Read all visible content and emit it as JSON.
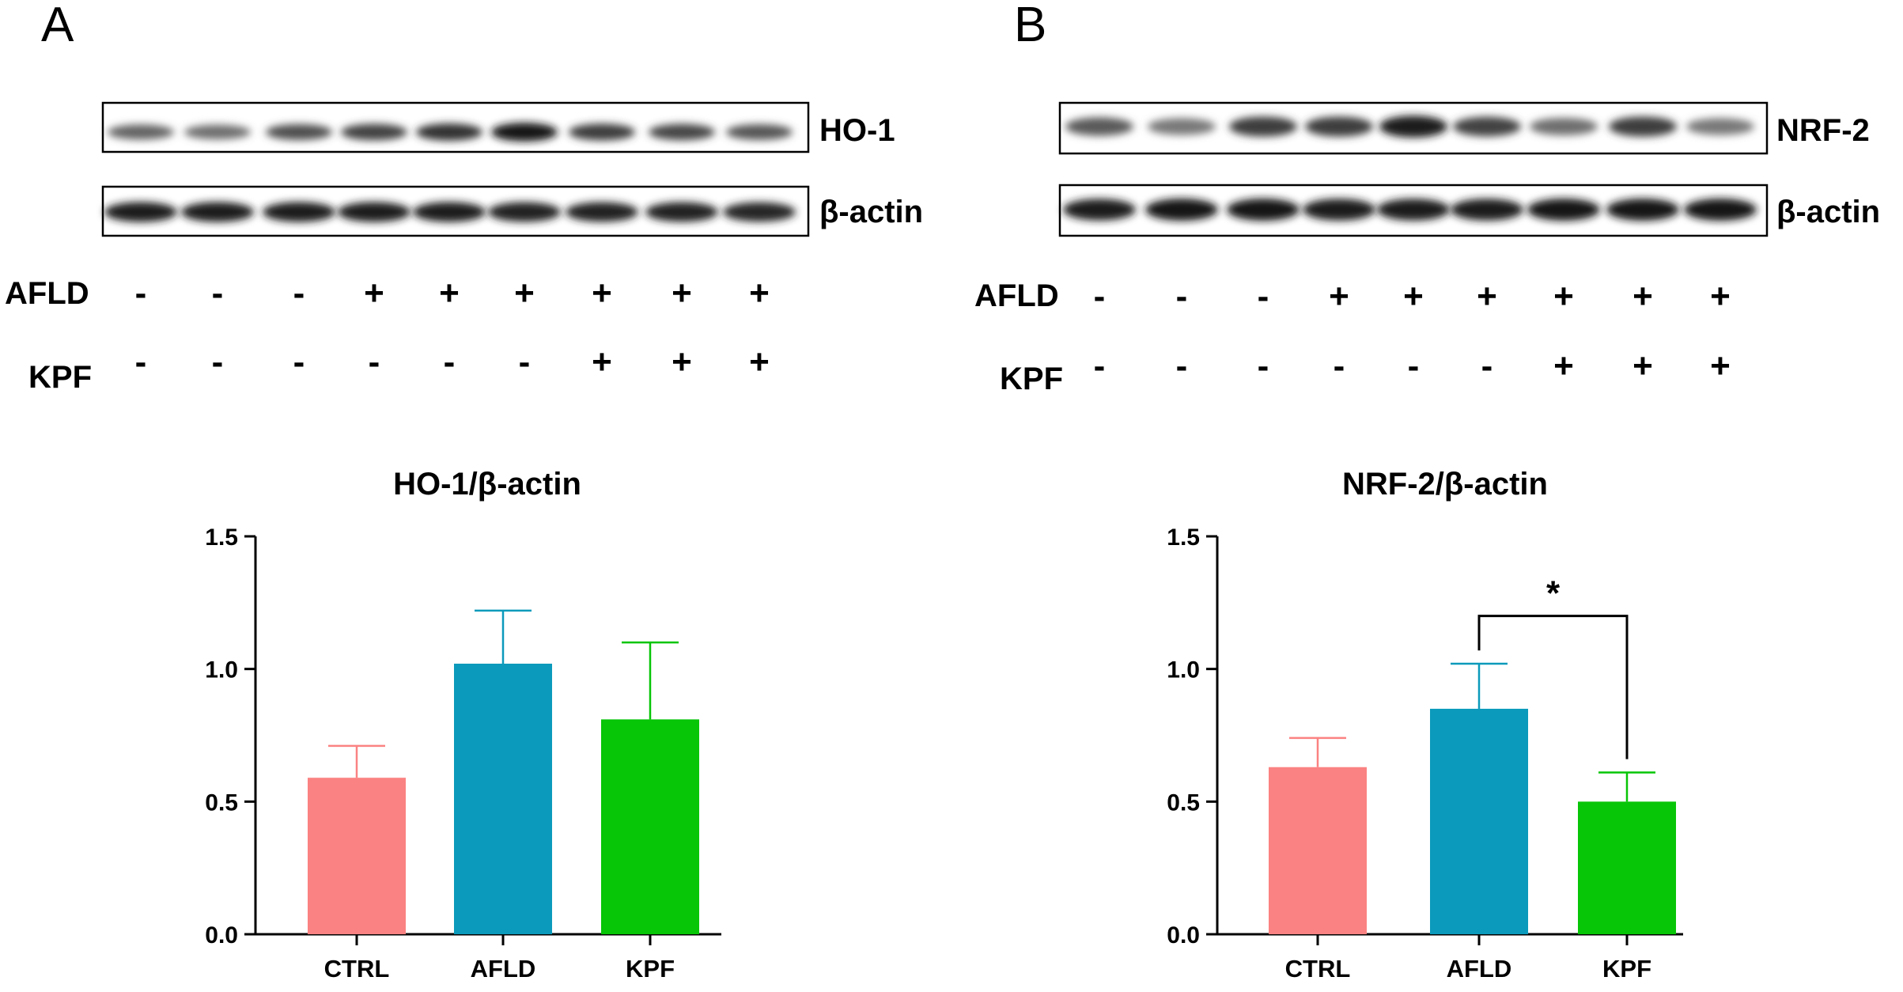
{
  "panels": [
    {
      "letter": "A",
      "blot": {
        "target_label": "HO-1",
        "control_label": "β-actin",
        "target_band_intensity": [
          0.55,
          0.5,
          0.65,
          0.72,
          0.8,
          0.95,
          0.75,
          0.7,
          0.62
        ],
        "control_band_intensity": [
          0.9,
          0.9,
          0.9,
          0.9,
          0.9,
          0.88,
          0.88,
          0.88,
          0.86
        ]
      },
      "treatments": [
        {
          "label": "AFLD",
          "signs": [
            "-",
            "-",
            "-",
            "+",
            "+",
            "+",
            "+",
            "+",
            "+"
          ]
        },
        {
          "label": "KPF",
          "signs": [
            "-",
            "-",
            "-",
            "-",
            "-",
            "-",
            "+",
            "+",
            "+"
          ]
        }
      ]
    },
    {
      "letter": "B",
      "blot": {
        "target_label": "NRF-2",
        "control_label": "β-actin",
        "target_band_intensity": [
          0.6,
          0.45,
          0.75,
          0.75,
          0.92,
          0.72,
          0.5,
          0.75,
          0.45
        ],
        "control_band_intensity": [
          0.9,
          0.95,
          0.95,
          0.92,
          0.92,
          0.92,
          0.95,
          0.95,
          0.95
        ]
      },
      "treatments": [
        {
          "label": "AFLD",
          "signs": [
            "-",
            "-",
            "-",
            "+",
            "+",
            "+",
            "+",
            "+",
            "+"
          ]
        },
        {
          "label": "KPF",
          "signs": [
            "-",
            "-",
            "-",
            "-",
            "-",
            "-",
            "+",
            "+",
            "+"
          ]
        }
      ]
    }
  ],
  "chart_data": [
    {
      "type": "bar",
      "title": "HO-1/β-actin",
      "categories": [
        "CTRL",
        "AFLD",
        "KPF"
      ],
      "values": [
        0.59,
        1.02,
        0.81
      ],
      "errors": [
        0.12,
        0.2,
        0.29
      ],
      "colors": [
        "#fb8282",
        "#0b9abb",
        "#07c507"
      ],
      "ylim": [
        0,
        1.5
      ],
      "yticks": [
        0.0,
        0.5,
        1.0,
        1.5
      ],
      "ytick_labels": [
        "0.0",
        "0.5",
        "1.0",
        "1.5"
      ],
      "xlabel": "",
      "ylabel": "",
      "significance": []
    },
    {
      "type": "bar",
      "title": "NRF-2/β-actin",
      "categories": [
        "CTRL",
        "AFLD",
        "KPF"
      ],
      "values": [
        0.63,
        0.85,
        0.5
      ],
      "errors": [
        0.11,
        0.17,
        0.11
      ],
      "colors": [
        "#fb8282",
        "#0b9abb",
        "#07c507"
      ],
      "ylim": [
        0,
        1.5
      ],
      "yticks": [
        0.0,
        0.5,
        1.0,
        1.5
      ],
      "ytick_labels": [
        "0.0",
        "0.5",
        "1.0",
        "1.5"
      ],
      "xlabel": "",
      "ylabel": "",
      "significance": [
        {
          "from": "AFLD",
          "to": "KPF",
          "label": "*",
          "y": 1.2
        }
      ]
    }
  ]
}
